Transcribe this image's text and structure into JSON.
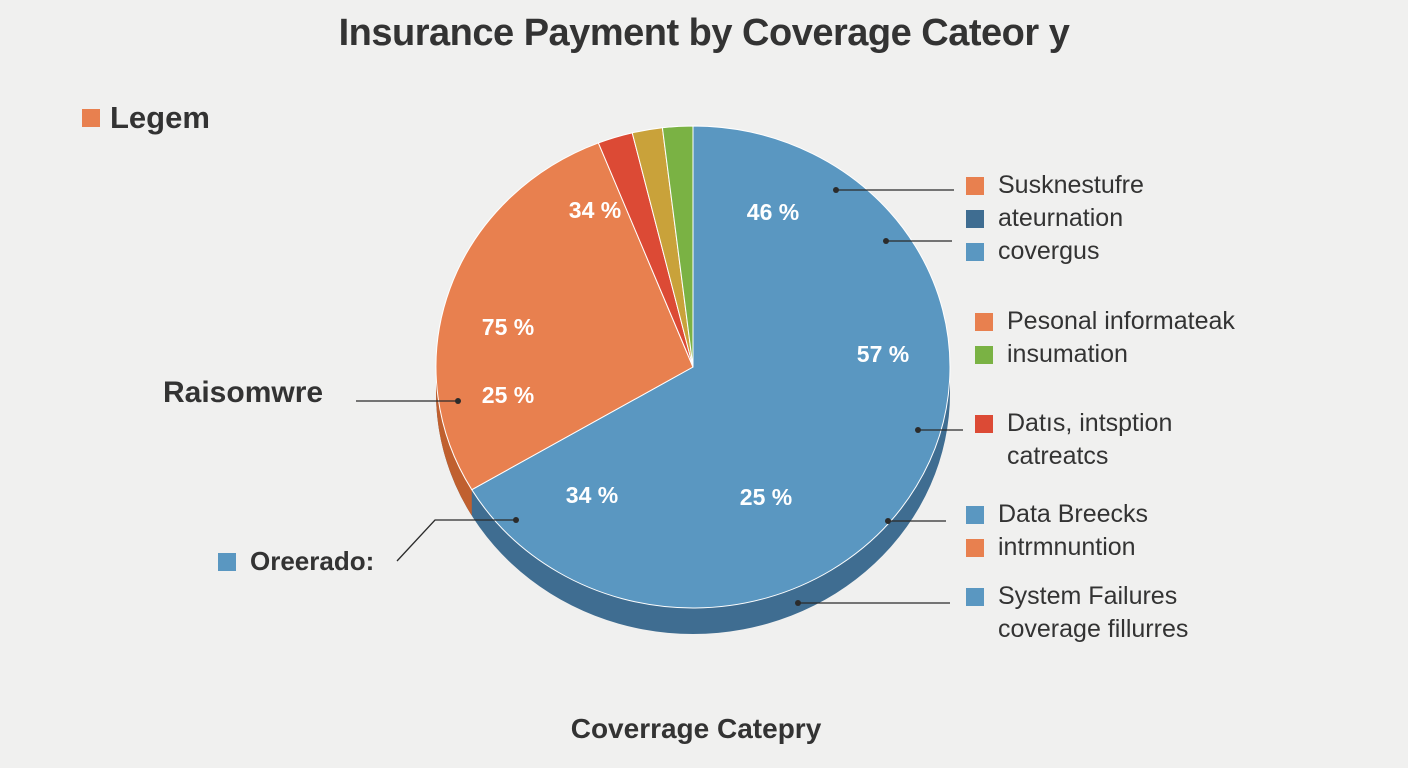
{
  "title": "Insurance Payment by Coverage Cateor y",
  "xlabel": "Coverrage Catepry",
  "legend_header": {
    "label": "Legem",
    "color": "#e8804f"
  },
  "side_labels": {
    "ransomware": "Raisomwre",
    "overrado": "Oreerado:",
    "overrado_color": "#5a97c1"
  },
  "colors": {
    "blue": "#5a97c1",
    "blue_side": "#3f6d91",
    "orange": "#e8804f",
    "orange_side": "#c0602f",
    "red": "#dc4a35",
    "gold": "#c9a23a",
    "green": "#7ab244"
  },
  "chart_data": {
    "type": "pie",
    "title": "Insurance Payment by Coverage Cateor y",
    "xlabel": "Coverrage Catepry",
    "slices": [
      {
        "color": "#5a97c1",
        "value": 66.5
      },
      {
        "color": "#e8804f",
        "value": 27.5
      },
      {
        "color": "#dc4a35",
        "value": 2.2
      },
      {
        "color": "#c9a23a",
        "value": 1.9
      },
      {
        "color": "#7ab244",
        "value": 1.9
      }
    ],
    "data_labels": [
      "34 %",
      "46 %",
      "75 %",
      "57 %",
      "25 %",
      "34 %",
      "25 %"
    ],
    "legend": [
      {
        "label": "Susknestufre",
        "color": "#e8804f"
      },
      {
        "label": "ateurnation",
        "color": "#3f6d91"
      },
      {
        "label": "covergus",
        "color": "#5a97c1"
      },
      {
        "label": "Pesonal informateak",
        "color": "#e8804f"
      },
      {
        "label": "insumation",
        "color": "#7ab244"
      },
      {
        "label": "Datıs, intsption",
        "color": "#dc4a35"
      },
      {
        "label": "catreatcs",
        "color": ""
      },
      {
        "label": "Data Breecks",
        "color": "#5a97c1"
      },
      {
        "label": "intrmnuntion",
        "color": "#e8804f"
      },
      {
        "label": "System Failures",
        "color": "#5a97c1"
      },
      {
        "label": "coverage fillurres",
        "color": ""
      }
    ],
    "legend_placement": "right"
  }
}
